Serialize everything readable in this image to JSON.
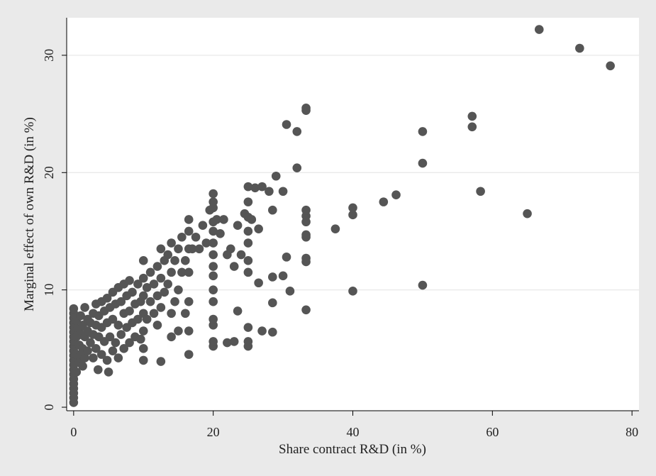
{
  "chart_data": {
    "type": "scatter",
    "title": "",
    "xlabel": "Share contract R&D (in %)",
    "ylabel": "Marginal effect of own R&D (in %)",
    "xlim": [
      -1,
      81
    ],
    "ylim": [
      -0.3,
      33.2
    ],
    "x_ticks": [
      0,
      20,
      40,
      60,
      80
    ],
    "y_ticks": [
      0,
      10,
      20,
      30
    ],
    "grid": "horizontal",
    "background": "#eaeaea",
    "plot_background": "#ffffff",
    "marker_color": "#555555",
    "series": [
      {
        "points": [
          [
            0,
            0.4
          ],
          [
            0,
            0.8
          ],
          [
            0,
            1.2
          ],
          [
            0,
            1.6
          ],
          [
            0,
            2.0
          ],
          [
            0,
            2.4
          ],
          [
            0,
            2.8
          ],
          [
            0,
            3.2
          ],
          [
            0,
            3.6
          ],
          [
            0,
            4.0
          ],
          [
            0,
            4.4
          ],
          [
            0,
            4.8
          ],
          [
            0,
            5.2
          ],
          [
            0,
            5.6
          ],
          [
            0,
            6.0
          ],
          [
            0,
            6.4
          ],
          [
            0,
            6.8
          ],
          [
            0,
            7.2
          ],
          [
            0,
            7.6
          ],
          [
            0,
            8.0
          ],
          [
            0,
            8.4
          ],
          [
            0.4,
            3.0
          ],
          [
            0.4,
            4.5
          ],
          [
            0.4,
            6.0
          ],
          [
            0.4,
            7.4
          ],
          [
            0.8,
            3.8
          ],
          [
            0.8,
            5.3
          ],
          [
            0.8,
            6.7
          ],
          [
            1.0,
            4.5
          ],
          [
            1.0,
            6.2
          ],
          [
            1.0,
            7.8
          ],
          [
            1.3,
            3.5
          ],
          [
            1.3,
            5.0
          ],
          [
            1.3,
            7.0
          ],
          [
            1.6,
            4.2
          ],
          [
            1.6,
            6.0
          ],
          [
            1.6,
            8.5
          ],
          [
            2.0,
            4.8
          ],
          [
            2.0,
            6.5
          ],
          [
            2.0,
            7.5
          ],
          [
            2.4,
            5.5
          ],
          [
            2.4,
            7.2
          ],
          [
            2.8,
            4.2
          ],
          [
            2.8,
            6.2
          ],
          [
            2.8,
            8.0
          ],
          [
            3.2,
            5.0
          ],
          [
            3.2,
            7.0
          ],
          [
            3.2,
            8.8
          ],
          [
            3.5,
            3.2
          ],
          [
            3.6,
            6.0
          ],
          [
            3.6,
            7.8
          ],
          [
            4.0,
            4.5
          ],
          [
            4.0,
            6.8
          ],
          [
            4.0,
            9.0
          ],
          [
            4.4,
            5.6
          ],
          [
            4.4,
            8.2
          ],
          [
            4.8,
            4.0
          ],
          [
            4.8,
            7.2
          ],
          [
            4.8,
            9.3
          ],
          [
            5.0,
            3.0
          ],
          [
            5.2,
            6.0
          ],
          [
            5.2,
            8.5
          ],
          [
            5.6,
            4.8
          ],
          [
            5.6,
            7.5
          ],
          [
            5.6,
            9.8
          ],
          [
            6.0,
            5.5
          ],
          [
            6.0,
            8.8
          ],
          [
            6.4,
            4.2
          ],
          [
            6.4,
            7.0
          ],
          [
            6.4,
            10.2
          ],
          [
            6.8,
            6.2
          ],
          [
            6.8,
            9.0
          ],
          [
            7.2,
            5.0
          ],
          [
            7.2,
            8.0
          ],
          [
            7.2,
            10.5
          ],
          [
            7.6,
            6.8
          ],
          [
            7.6,
            9.5
          ],
          [
            8.0,
            5.5
          ],
          [
            8.0,
            8.2
          ],
          [
            8.0,
            10.8
          ],
          [
            8.4,
            7.2
          ],
          [
            8.4,
            9.8
          ],
          [
            8.8,
            6.0
          ],
          [
            8.8,
            8.8
          ],
          [
            9.2,
            7.5
          ],
          [
            9.2,
            10.5
          ],
          [
            9.6,
            5.8
          ],
          [
            9.6,
            9.0
          ],
          [
            10.0,
            4.0
          ],
          [
            10.0,
            5.0
          ],
          [
            10.0,
            6.5
          ],
          [
            10.0,
            8.0
          ],
          [
            10.0,
            9.5
          ],
          [
            10.0,
            11.0
          ],
          [
            10.0,
            12.5
          ],
          [
            10.5,
            7.5
          ],
          [
            10.5,
            10.2
          ],
          [
            11.0,
            9.0
          ],
          [
            11.0,
            11.5
          ],
          [
            11.5,
            8.0
          ],
          [
            11.5,
            10.5
          ],
          [
            12.0,
            7.0
          ],
          [
            12.0,
            9.5
          ],
          [
            12.0,
            12.0
          ],
          [
            12.5,
            3.9
          ],
          [
            12.5,
            8.5
          ],
          [
            12.5,
            11.0
          ],
          [
            12.5,
            13.5
          ],
          [
            13.0,
            9.8
          ],
          [
            13.0,
            12.5
          ],
          [
            13.5,
            10.5
          ],
          [
            13.5,
            13.0
          ],
          [
            14.0,
            6.0
          ],
          [
            14.0,
            8.0
          ],
          [
            14.0,
            11.5
          ],
          [
            14.0,
            14.0
          ],
          [
            14.5,
            9.0
          ],
          [
            14.5,
            12.5
          ],
          [
            15.0,
            6.5
          ],
          [
            15.0,
            10.0
          ],
          [
            15.0,
            13.5
          ],
          [
            15.5,
            11.5
          ],
          [
            15.5,
            14.5
          ],
          [
            16.0,
            8.0
          ],
          [
            16.0,
            12.5
          ],
          [
            16.5,
            4.5
          ],
          [
            16.5,
            6.5
          ],
          [
            16.5,
            9.0
          ],
          [
            16.5,
            11.5
          ],
          [
            16.5,
            13.5
          ],
          [
            16.5,
            15.0
          ],
          [
            16.5,
            16.0
          ],
          [
            17.0,
            13.5
          ],
          [
            17.5,
            14.5
          ],
          [
            18.0,
            13.5
          ],
          [
            18.5,
            15.5
          ],
          [
            19.0,
            14.0
          ],
          [
            19.5,
            16.8
          ],
          [
            20.0,
            5.2
          ],
          [
            20.0,
            5.6
          ],
          [
            20.0,
            7.0
          ],
          [
            20.0,
            7.5
          ],
          [
            20.0,
            9.0
          ],
          [
            20.0,
            10.0
          ],
          [
            20.0,
            11.2
          ],
          [
            20.0,
            12.0
          ],
          [
            20.0,
            13.0
          ],
          [
            20.0,
            14.0
          ],
          [
            20.0,
            15.0
          ],
          [
            20.0,
            15.8
          ],
          [
            20.0,
            17.0
          ],
          [
            20.0,
            17.5
          ],
          [
            20.0,
            18.2
          ],
          [
            20.5,
            16.0
          ],
          [
            21.0,
            14.8
          ],
          [
            21.5,
            16.0
          ],
          [
            22.0,
            5.5
          ],
          [
            22.0,
            13.0
          ],
          [
            22.5,
            13.5
          ],
          [
            23.0,
            5.6
          ],
          [
            23.0,
            12.0
          ],
          [
            23.5,
            8.2
          ],
          [
            23.5,
            15.5
          ],
          [
            24.0,
            13.0
          ],
          [
            24.5,
            16.5
          ],
          [
            25.0,
            5.2
          ],
          [
            25.0,
            5.6
          ],
          [
            25.0,
            6.8
          ],
          [
            25.0,
            11.5
          ],
          [
            25.0,
            12.5
          ],
          [
            25.0,
            14.0
          ],
          [
            25.0,
            15.0
          ],
          [
            25.0,
            16.2
          ],
          [
            25.0,
            17.5
          ],
          [
            25.0,
            18.8
          ],
          [
            25.5,
            16.0
          ],
          [
            26.0,
            18.7
          ],
          [
            26.5,
            15.2
          ],
          [
            26.5,
            10.6
          ],
          [
            27.0,
            6.5
          ],
          [
            27.0,
            18.8
          ],
          [
            28.0,
            18.4
          ],
          [
            28.5,
            6.4
          ],
          [
            28.5,
            8.9
          ],
          [
            28.5,
            11.1
          ],
          [
            28.5,
            16.8
          ],
          [
            29.0,
            19.7
          ],
          [
            30.0,
            11.2
          ],
          [
            30.0,
            18.4
          ],
          [
            30.5,
            12.8
          ],
          [
            30.5,
            24.1
          ],
          [
            31.0,
            9.9
          ],
          [
            32.0,
            20.4
          ],
          [
            32.0,
            23.5
          ],
          [
            33.3,
            8.3
          ],
          [
            33.3,
            12.4
          ],
          [
            33.3,
            12.7
          ],
          [
            33.3,
            14.5
          ],
          [
            33.3,
            14.7
          ],
          [
            33.3,
            15.8
          ],
          [
            33.3,
            16.3
          ],
          [
            33.3,
            16.8
          ],
          [
            33.3,
            25.3
          ],
          [
            33.3,
            25.5
          ],
          [
            37.5,
            15.2
          ],
          [
            40.0,
            9.9
          ],
          [
            40.0,
            16.4
          ],
          [
            40.0,
            17.0
          ],
          [
            44.4,
            17.5
          ],
          [
            46.2,
            18.1
          ],
          [
            50.0,
            10.4
          ],
          [
            50.0,
            20.8
          ],
          [
            50.0,
            23.5
          ],
          [
            57.1,
            23.9
          ],
          [
            57.1,
            24.8
          ],
          [
            58.3,
            18.4
          ],
          [
            65.0,
            16.5
          ],
          [
            66.7,
            32.2
          ],
          [
            72.5,
            30.6
          ],
          [
            76.9,
            29.1
          ]
        ]
      }
    ]
  }
}
